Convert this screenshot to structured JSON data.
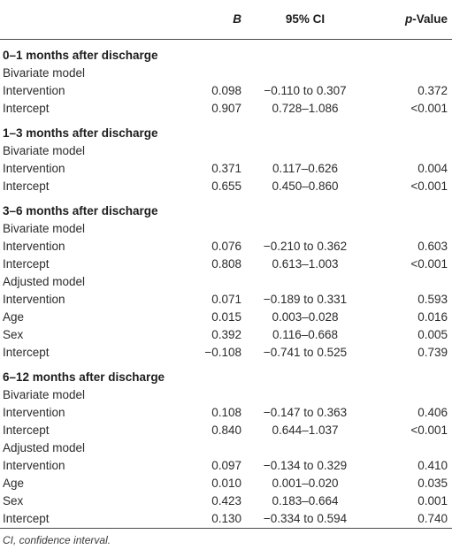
{
  "header": {
    "col_b": "B",
    "col_ci": "95% CI",
    "col_p_italic": "p",
    "col_p_rest": "-Value"
  },
  "sections": [
    {
      "title": "0–1 months after discharge",
      "rows": [
        {
          "label": "Bivariate model",
          "b": "",
          "ci": "",
          "p": ""
        },
        {
          "label": "Intervention",
          "b": "0.098",
          "ci": "−0.110 to 0.307",
          "p": "0.372"
        },
        {
          "label": "Intercept",
          "b": "0.907",
          "ci": "0.728–1.086",
          "p": "<0.001"
        }
      ]
    },
    {
      "title": "1–3 months after discharge",
      "rows": [
        {
          "label": "Bivariate model",
          "b": "",
          "ci": "",
          "p": ""
        },
        {
          "label": "Intervention",
          "b": "0.371",
          "ci": "0.117–0.626",
          "p": "0.004"
        },
        {
          "label": "Intercept",
          "b": "0.655",
          "ci": "0.450–0.860",
          "p": "<0.001"
        }
      ]
    },
    {
      "title": "3–6 months after discharge",
      "rows": [
        {
          "label": "Bivariate model",
          "b": "",
          "ci": "",
          "p": ""
        },
        {
          "label": "Intervention",
          "b": "0.076",
          "ci": "−0.210 to 0.362",
          "p": "0.603"
        },
        {
          "label": "Intercept",
          "b": "0.808",
          "ci": "0.613–1.003",
          "p": "<0.001"
        },
        {
          "label": "Adjusted model",
          "b": "",
          "ci": "",
          "p": ""
        },
        {
          "label": "Intervention",
          "b": "0.071",
          "ci": "−0.189 to 0.331",
          "p": "0.593"
        },
        {
          "label": "Age",
          "b": "0.015",
          "ci": "0.003–0.028",
          "p": "0.016"
        },
        {
          "label": "Sex",
          "b": "0.392",
          "ci": "0.116–0.668",
          "p": "0.005"
        },
        {
          "label": "Intercept",
          "b": "−0.108",
          "ci": "−0.741 to 0.525",
          "p": "0.739"
        }
      ]
    },
    {
      "title": "6–12 months after discharge",
      "rows": [
        {
          "label": "Bivariate model",
          "b": "",
          "ci": "",
          "p": ""
        },
        {
          "label": "Intervention",
          "b": "0.108",
          "ci": "−0.147 to 0.363",
          "p": "0.406"
        },
        {
          "label": "Intercept",
          "b": "0.840",
          "ci": "0.644–1.037",
          "p": "<0.001"
        },
        {
          "label": "Adjusted model",
          "b": "",
          "ci": "",
          "p": ""
        },
        {
          "label": "Intervention",
          "b": "0.097",
          "ci": "−0.134 to 0.329",
          "p": "0.410"
        },
        {
          "label": "Age",
          "b": "0.010",
          "ci": "0.001–0.020",
          "p": "0.035"
        },
        {
          "label": "Sex",
          "b": "0.423",
          "ci": "0.183–0.664",
          "p": "0.001"
        },
        {
          "label": "Intercept",
          "b": "0.130",
          "ci": "−0.334 to 0.594",
          "p": "0.740"
        }
      ]
    }
  ],
  "footnote": "CI, confidence interval."
}
